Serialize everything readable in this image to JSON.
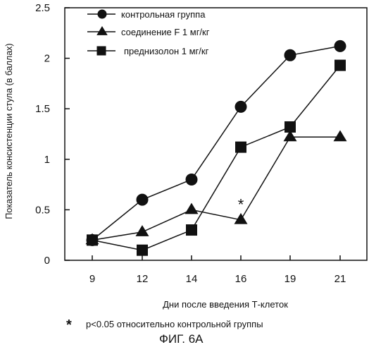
{
  "chart_data": {
    "type": "line",
    "categories": [
      "9",
      "12",
      "14",
      "16",
      "19",
      "21"
    ],
    "xlabel": "Дни после введения Т-клеток",
    "ylabel": "Показатель консистенции стула (в баллах)",
    "ylim": [
      0,
      2.5
    ],
    "yticks": [
      "0",
      "0.5",
      "1",
      "1.5",
      "2",
      "2.5"
    ],
    "grid": false,
    "legend_position": "top-left",
    "series": [
      {
        "name": "контрольная группа",
        "marker": "circle",
        "values": [
          0.2,
          0.6,
          0.8,
          1.52,
          2.03,
          2.12
        ]
      },
      {
        "name": "соединение F 1 мг/кг",
        "marker": "triangle",
        "values": [
          0.2,
          0.28,
          0.5,
          0.4,
          1.22,
          1.22
        ]
      },
      {
        "name": "преднизолон 1 мг/кг",
        "marker": "square",
        "values": [
          0.2,
          0.1,
          0.3,
          1.12,
          1.32,
          1.93
        ]
      }
    ],
    "annotations": [
      {
        "text": "*",
        "category": "16",
        "series": "соединение F 1 мг/кг"
      }
    ]
  },
  "footnote": {
    "symbol": "*",
    "text": "p<0.05 относительно контрольной группы"
  },
  "figure_caption": "ФИГ. 6А",
  "colors": {
    "ink": "#111111",
    "marker_fill": "#ffffff"
  }
}
